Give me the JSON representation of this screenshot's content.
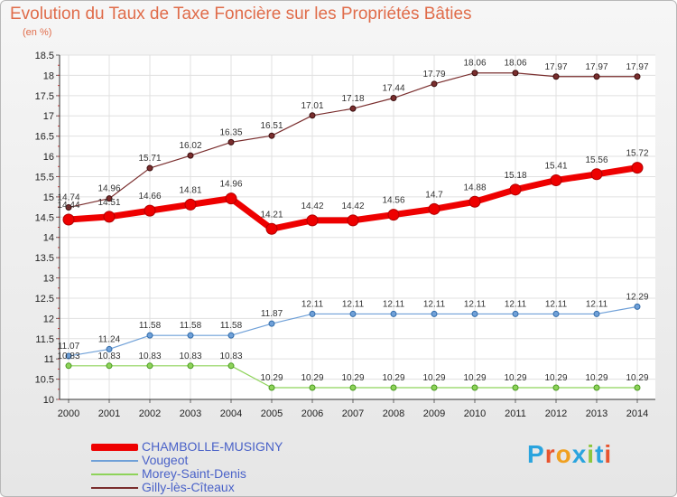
{
  "title": "Evolution du Taux de Taxe Foncière sur les Propriétés Bâties",
  "unit_label": "(en %)",
  "brand": {
    "text": "Proxiti",
    "colors": [
      "#2aa4de",
      "#e8542e",
      "#f0a020",
      "#2aa4de",
      "#8cc63e",
      "#2aa4de",
      "#e8542e"
    ]
  },
  "chart_data": {
    "type": "line",
    "x": [
      "2000",
      "2001",
      "2002",
      "2003",
      "2004",
      "2005",
      "2006",
      "2007",
      "2008",
      "2009",
      "2010",
      "2011",
      "2012",
      "2013",
      "2014"
    ],
    "ylim": [
      10,
      18.5
    ],
    "yticks": [
      "10",
      "10.5",
      "11",
      "11.5",
      "12",
      "12.5",
      "13",
      "13.5",
      "14",
      "14.5",
      "15",
      "15.5",
      "16",
      "16.5",
      "17",
      "17.5",
      "18",
      "18.5"
    ],
    "series": [
      {
        "name": "CHAMBOLLE-MUSIGNY",
        "color": "#ee0000",
        "values": [
          14.44,
          14.51,
          14.66,
          14.81,
          14.96,
          14.21,
          14.42,
          14.42,
          14.56,
          14.7,
          14.88,
          15.18,
          15.41,
          15.56,
          15.72
        ],
        "labels": [
          "14.44",
          "14.51",
          "14.66",
          "14.81",
          "14.96",
          "14.21",
          "14.42",
          "14.42",
          "14.56",
          "14.7",
          "14.88",
          "15.18",
          "15.41",
          "15.56",
          "15.72"
        ]
      },
      {
        "name": "Vougeot",
        "color": "#6fa0d8",
        "values": [
          11.07,
          11.24,
          11.58,
          11.58,
          11.58,
          11.87,
          12.11,
          12.11,
          12.11,
          12.11,
          12.11,
          12.11,
          12.11,
          12.11,
          12.29
        ],
        "labels": [
          "11.07",
          "11.24",
          "11.58",
          "11.58",
          "11.58",
          "11.87",
          "12.11",
          "12.11",
          "12.11",
          "12.11",
          "12.11",
          "12.11",
          "12.11",
          "12.11",
          "12.29"
        ]
      },
      {
        "name": "Morey-Saint-Denis",
        "color": "#8ed35a",
        "values": [
          10.83,
          10.83,
          10.83,
          10.83,
          10.83,
          10.29,
          10.29,
          10.29,
          10.29,
          10.29,
          10.29,
          10.29,
          10.29,
          10.29,
          10.29
        ],
        "labels": [
          "10.83",
          "10.83",
          "10.83",
          "10.83",
          "10.83",
          "10.29",
          "10.29",
          "10.29",
          "10.29",
          "10.29",
          "10.29",
          "10.29",
          "10.29",
          "10.29",
          "10.29"
        ]
      },
      {
        "name": "Gilly-lès-Cîteaux",
        "color": "#7a2e2e",
        "values": [
          14.74,
          14.96,
          15.71,
          16.02,
          16.35,
          16.51,
          17.01,
          17.18,
          17.44,
          17.79,
          18.06,
          18.06,
          17.97,
          17.97,
          17.97
        ],
        "labels": [
          "14.74",
          "14.96",
          "15.71",
          "16.02",
          "16.35",
          "16.51",
          "17.01",
          "17.18",
          "17.44",
          "17.79",
          "18.06",
          "18.06",
          "17.97",
          "17.97",
          "17.97"
        ]
      }
    ]
  }
}
